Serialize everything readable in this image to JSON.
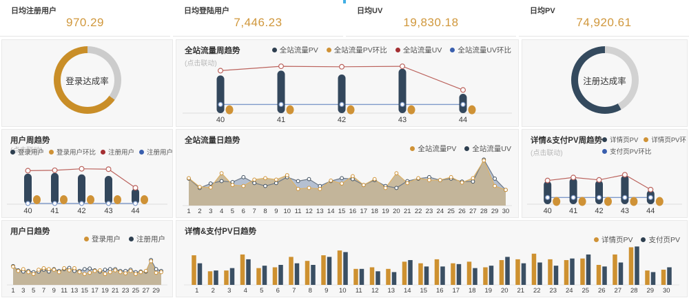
{
  "page": {
    "accent_tab_color": "#41aee3",
    "panel_bg": "#f7f7f7"
  },
  "kpis": [
    {
      "label": "日均注册用户",
      "value": "970.29"
    },
    {
      "label": "日均登陆用户",
      "value": "7,446.23"
    },
    {
      "label": "日均UV",
      "value": "19,830.18"
    },
    {
      "label": "日均PV",
      "value": "74,920.61"
    }
  ],
  "chart_data": [
    {
      "id": "login-rate",
      "type": "donut",
      "label": "登录达成率",
      "value": 0.65,
      "color": "#c98e28",
      "track": "#cccccc"
    },
    {
      "id": "site-week",
      "type": "week",
      "title": "全站流量周趋势",
      "subtitle": "(点击联动)",
      "categories": [
        "40",
        "41",
        "42",
        "43",
        "44"
      ],
      "legend": [
        [
          {
            "label": "全站流量PV",
            "color": "#2e3f50"
          },
          {
            "label": "全站流量PV环比",
            "color": "#cf9236"
          },
          {
            "label": "全站流量UV",
            "color": "#a42f32"
          },
          {
            "label": "全站流量UV环比",
            "color": "#3a5fae"
          }
        ]
      ],
      "series": {
        "bars": {
          "name": "全站流量PV",
          "color": "#33475c",
          "values": [
            0.78,
            0.88,
            0.8,
            0.92,
            0.4
          ]
        },
        "dots": {
          "name": "全站流量PV环比",
          "color": "#cf9236",
          "values": [
            0.07,
            0.07,
            0.07,
            0.07,
            0.07
          ]
        },
        "line1": {
          "name": "全站流量UV",
          "color": "#bb625c",
          "values": [
            0.88,
            0.97,
            0.96,
            0.97,
            0.48
          ]
        },
        "line2": {
          "name": "全站流量UV环比",
          "color": "#7e99c9",
          "values": [
            0.18,
            0.18,
            0.18,
            0.18,
            0.18
          ]
        }
      }
    },
    {
      "id": "register-rate",
      "type": "donut",
      "label": "注册达成率",
      "value": 0.58,
      "color": "#344a5e",
      "track": "#d2d2d2"
    },
    {
      "id": "user-week",
      "type": "week",
      "title": "用户周趋势",
      "subtitle": "(点击联动)",
      "categories": [
        "40",
        "41",
        "42",
        "43",
        "44"
      ],
      "legend": [
        [
          {
            "label": "登录用户",
            "color": "#2e3f50"
          },
          {
            "label": "登录用户环比",
            "color": "#cf9236"
          },
          {
            "label": "注册用户",
            "color": "#a42f32"
          },
          {
            "label": "注册用户环比",
            "color": "#3a5fae"
          }
        ]
      ],
      "series": {
        "bars": {
          "name": "登录用户",
          "color": "#33475c",
          "values": [
            0.82,
            0.84,
            0.8,
            0.76,
            0.42
          ]
        },
        "dots": {
          "name": "登录用户环比",
          "color": "#cf9236",
          "values": [
            0.12,
            0.12,
            0.12,
            0.12,
            0.12
          ]
        },
        "line1": {
          "name": "注册用户",
          "color": "#bb625c",
          "values": [
            0.9,
            0.91,
            0.95,
            0.94,
            0.44
          ]
        },
        "line2": {
          "name": "注册用户环比",
          "color": "#7e99c9",
          "values": [
            0.02,
            0.02,
            0.02,
            0.02,
            0.02
          ]
        }
      }
    },
    {
      "id": "site-daily",
      "type": "area",
      "title": "全站流量日趋势",
      "tick_every": 1,
      "categories": [
        "1",
        "2",
        "3",
        "4",
        "5",
        "6",
        "7",
        "8",
        "9",
        "10",
        "11",
        "12",
        "13",
        "14",
        "15",
        "16",
        "17",
        "18",
        "19",
        "20",
        "21",
        "22",
        "23",
        "24",
        "25",
        "26",
        "27",
        "28",
        "29",
        "30"
      ],
      "legend": [
        [
          {
            "label": "全站流量PV",
            "color": "#cf9236"
          },
          {
            "label": "全站流量UV",
            "color": "#2e3f50"
          }
        ]
      ],
      "series": [
        {
          "name": "全站流量UV",
          "line": "#6f7a88",
          "marker": "#3e4e5e",
          "fill": "rgba(159,173,196,0.75)",
          "values": [
            0.55,
            0.36,
            0.45,
            0.5,
            0.48,
            0.58,
            0.46,
            0.4,
            0.46,
            0.58,
            0.5,
            0.54,
            0.4,
            0.5,
            0.56,
            0.54,
            0.42,
            0.52,
            0.4,
            0.36,
            0.5,
            0.55,
            0.58,
            0.52,
            0.55,
            0.49,
            0.49,
            0.94,
            0.55,
            0.32
          ]
        },
        {
          "name": "全站流量PV",
          "line": "#ddb266",
          "marker": "#cf9236",
          "fill": "rgba(196,180,147,0.9)",
          "values": [
            0.56,
            0.38,
            0.37,
            0.66,
            0.42,
            0.4,
            0.53,
            0.56,
            0.53,
            0.62,
            0.34,
            0.36,
            0.34,
            0.51,
            0.45,
            0.6,
            0.42,
            0.54,
            0.36,
            0.66,
            0.46,
            0.56,
            0.52,
            0.52,
            0.58,
            0.47,
            0.56,
            0.92,
            0.4,
            0.32
          ]
        }
      ]
    },
    {
      "id": "detail-week",
      "type": "week",
      "title": "详情&支付PV周趋势",
      "subtitle": "(点击联动)",
      "categories": [
        "40",
        "41",
        "42",
        "43",
        "44"
      ],
      "legend": [
        [
          {
            "label": "详情页PV",
            "color": "#2e3f50"
          },
          {
            "label": "详情页PV环比",
            "color": "#cf9236"
          },
          {
            "label": "支付页PV",
            "color": "#a42f32"
          }
        ],
        [
          {
            "label": "支付页PV环比",
            "color": "#3a5fae"
          }
        ]
      ],
      "series": {
        "bars": {
          "name": "详情页PV",
          "color": "#33475c",
          "values": [
            0.76,
            0.86,
            0.78,
            0.95,
            0.46
          ]
        },
        "dots": {
          "name": "详情页PV环比",
          "color": "#cf9236",
          "values": [
            0.09,
            0.09,
            0.09,
            0.09,
            0.09
          ]
        },
        "line1": {
          "name": "支付页PV",
          "color": "#bb625c",
          "values": [
            0.78,
            0.88,
            0.8,
            0.97,
            0.48
          ]
        },
        "line2": {
          "name": "支付页PV环比",
          "color": "#7e99c9",
          "values": [
            0.22,
            0.22,
            0.22,
            0.22,
            0.22
          ]
        }
      }
    },
    {
      "id": "user-daily",
      "type": "area",
      "title": "用户日趋势",
      "tick_every": 2,
      "categories": [
        "1",
        "2",
        "3",
        "4",
        "5",
        "6",
        "7",
        "8",
        "9",
        "10",
        "11",
        "12",
        "13",
        "14",
        "15",
        "16",
        "17",
        "18",
        "19",
        "20",
        "21",
        "22",
        "23",
        "24",
        "25",
        "26",
        "27",
        "28",
        "29",
        "30"
      ],
      "legend": [
        [
          {
            "label": "登录用户",
            "color": "#cf9236"
          },
          {
            "label": "注册用户",
            "color": "#2e3f50"
          }
        ]
      ],
      "series": [
        {
          "name": "注册用户",
          "line": "#6f7a88",
          "marker": "#3e4e5e",
          "fill": "rgba(159,173,196,0.75)",
          "values": [
            0.62,
            0.48,
            0.44,
            0.46,
            0.42,
            0.44,
            0.5,
            0.44,
            0.52,
            0.46,
            0.52,
            0.56,
            0.46,
            0.46,
            0.52,
            0.54,
            0.48,
            0.44,
            0.5,
            0.52,
            0.52,
            0.46,
            0.46,
            0.5,
            0.42,
            0.44,
            0.44,
            0.82,
            0.52,
            0.46
          ]
        },
        {
          "name": "登录用户",
          "line": "#ddb266",
          "marker": "#cf9236",
          "fill": "rgba(196,180,147,0.9)",
          "values": [
            0.6,
            0.46,
            0.52,
            0.42,
            0.36,
            0.5,
            0.55,
            0.52,
            0.5,
            0.42,
            0.55,
            0.48,
            0.55,
            0.42,
            0.36,
            0.4,
            0.46,
            0.48,
            0.36,
            0.42,
            0.48,
            0.42,
            0.38,
            0.46,
            0.36,
            0.42,
            0.46,
            0.78,
            0.4,
            0.42
          ]
        }
      ]
    },
    {
      "id": "detail-daily",
      "type": "bars",
      "title": "详情&支付PV日趋势",
      "categories": [
        "1",
        "2",
        "3",
        "4",
        "5",
        "6",
        "7",
        "8",
        "9",
        "10",
        "11",
        "12",
        "13",
        "14",
        "15",
        "16",
        "17",
        "18",
        "19",
        "20",
        "21",
        "22",
        "23",
        "24",
        "25",
        "26",
        "27",
        "28",
        "29",
        "30"
      ],
      "legend": [
        [
          {
            "label": "详情页PV",
            "color": "#cf9236"
          },
          {
            "label": "支付页PV",
            "color": "#2e3f50"
          }
        ]
      ],
      "series": [
        {
          "name": "详情页PV",
          "color": "#ce9130",
          "values": [
            0.74,
            0.34,
            0.36,
            0.76,
            0.42,
            0.44,
            0.7,
            0.6,
            0.74,
            0.86,
            0.4,
            0.44,
            0.4,
            0.58,
            0.54,
            0.64,
            0.54,
            0.58,
            0.44,
            0.62,
            0.64,
            0.78,
            0.64,
            0.62,
            0.66,
            0.5,
            0.76,
            0.94,
            0.36,
            0.38
          ]
        },
        {
          "name": "支付页PV",
          "color": "#3a4f63",
          "values": [
            0.54,
            0.36,
            0.42,
            0.64,
            0.48,
            0.5,
            0.54,
            0.5,
            0.7,
            0.82,
            0.4,
            0.34,
            0.32,
            0.62,
            0.46,
            0.46,
            0.52,
            0.42,
            0.48,
            0.7,
            0.54,
            0.56,
            0.48,
            0.66,
            0.76,
            0.46,
            0.56,
            0.96,
            0.32,
            0.44
          ]
        }
      ]
    }
  ]
}
